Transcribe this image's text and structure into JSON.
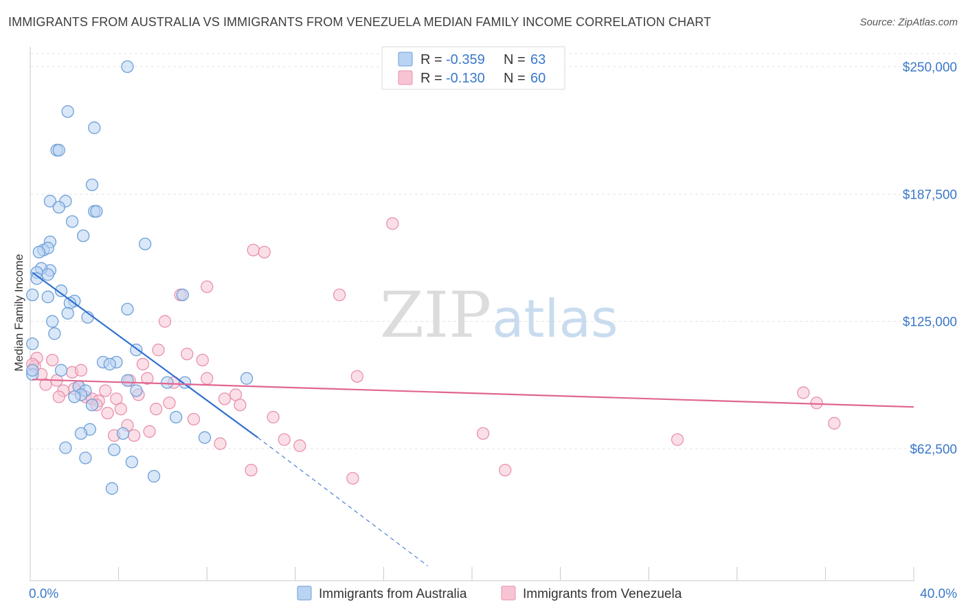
{
  "header": {
    "title": "IMMIGRANTS FROM AUSTRALIA VS IMMIGRANTS FROM VENEZUELA MEDIAN FAMILY INCOME CORRELATION CHART",
    "source": "Source: ZipAtlas.com"
  },
  "watermark": {
    "zip": "ZIP",
    "atlas": "atlas"
  },
  "colors": {
    "australia_fill": "#b9d3f2",
    "australia_stroke": "#6d9fd8",
    "australia_line": "#2f6fd0",
    "venezuela_fill": "#f7c4d4",
    "venezuela_stroke": "#e891ad",
    "venezuela_line": "#e0658f",
    "axis_label": "#3a78c9",
    "grid": "#e3e3e3"
  },
  "chart_data": {
    "type": "scatter",
    "title": "IMMIGRANTS FROM AUSTRALIA VS IMMIGRANTS FROM VENEZUELA MEDIAN FAMILY INCOME CORRELATION CHART",
    "xlabel": "",
    "ylabel": "Median Family Income",
    "xlim": [
      0,
      40
    ],
    "ylim": [
      0,
      260000
    ],
    "x_tick_labels": [
      {
        "value": 0,
        "label": "0.0%"
      },
      {
        "value": 40,
        "label": "40.0%"
      }
    ],
    "y_tick_labels": [
      {
        "value": 62500,
        "label": "$62,500"
      },
      {
        "value": 125000,
        "label": "$125,000"
      },
      {
        "value": 187500,
        "label": "$187,500"
      },
      {
        "value": 250000,
        "label": "$250,000"
      }
    ],
    "grid": true,
    "legend": {
      "position": "top-center",
      "entries": [
        {
          "series": "Immigrants from Australia",
          "r_label": "R =",
          "r_value": "-0.359",
          "n_label": "N =",
          "n_value": "63"
        },
        {
          "series": "Immigrants from Venezuela",
          "r_label": "R =",
          "r_value": "-0.130",
          "n_label": "N =",
          "n_value": "60"
        }
      ]
    },
    "series": [
      {
        "name": "Immigrants from Australia",
        "trend": {
          "x": [
            0.1,
            10.3
          ],
          "y": [
            149000,
            68000
          ],
          "dashed_to": [
            18.0,
            5000
          ]
        },
        "points": [
          [
            4.4,
            250000
          ],
          [
            1.7,
            228000
          ],
          [
            2.9,
            220000
          ],
          [
            1.2,
            209000
          ],
          [
            1.3,
            209000
          ],
          [
            2.8,
            192000
          ],
          [
            0.9,
            184000
          ],
          [
            1.6,
            184000
          ],
          [
            1.3,
            181000
          ],
          [
            2.9,
            179000
          ],
          [
            3.0,
            179000
          ],
          [
            1.9,
            174000
          ],
          [
            2.4,
            167000
          ],
          [
            0.9,
            164000
          ],
          [
            5.2,
            163000
          ],
          [
            0.6,
            160000
          ],
          [
            0.8,
            161000
          ],
          [
            0.4,
            159000
          ],
          [
            0.9,
            150000
          ],
          [
            0.5,
            151000
          ],
          [
            0.3,
            149000
          ],
          [
            0.8,
            148000
          ],
          [
            0.3,
            146000
          ],
          [
            1.4,
            140000
          ],
          [
            0.1,
            138000
          ],
          [
            0.8,
            137000
          ],
          [
            6.9,
            138000
          ],
          [
            2.0,
            135000
          ],
          [
            1.8,
            134000
          ],
          [
            4.4,
            131000
          ],
          [
            1.7,
            129000
          ],
          [
            2.6,
            127000
          ],
          [
            1.0,
            125000
          ],
          [
            1.1,
            119000
          ],
          [
            0.1,
            114000
          ],
          [
            4.8,
            111000
          ],
          [
            3.3,
            105000
          ],
          [
            3.9,
            105000
          ],
          [
            3.6,
            104000
          ],
          [
            1.4,
            101000
          ],
          [
            0.1,
            99000
          ],
          [
            9.8,
            97000
          ],
          [
            4.4,
            96000
          ],
          [
            6.2,
            95000
          ],
          [
            7.0,
            95000
          ],
          [
            2.2,
            93000
          ],
          [
            2.5,
            91000
          ],
          [
            4.8,
            91000
          ],
          [
            2.3,
            89000
          ],
          [
            2.0,
            88000
          ],
          [
            2.8,
            84000
          ],
          [
            6.6,
            78000
          ],
          [
            2.7,
            72000
          ],
          [
            2.3,
            70000
          ],
          [
            4.2,
            70000
          ],
          [
            7.9,
            68000
          ],
          [
            1.6,
            63000
          ],
          [
            3.8,
            62000
          ],
          [
            2.5,
            58000
          ],
          [
            4.6,
            56000
          ],
          [
            5.6,
            49000
          ],
          [
            3.7,
            43000
          ],
          [
            0.1,
            101000
          ]
        ]
      },
      {
        "name": "Immigrants from Venezuela",
        "trend": {
          "x": [
            0.1,
            40.0
          ],
          "y": [
            96500,
            83000
          ]
        },
        "points": [
          [
            16.4,
            173000
          ],
          [
            10.1,
            160000
          ],
          [
            10.6,
            159000
          ],
          [
            8.0,
            142000
          ],
          [
            14.0,
            138000
          ],
          [
            6.8,
            138000
          ],
          [
            6.1,
            125000
          ],
          [
            5.8,
            111000
          ],
          [
            7.1,
            109000
          ],
          [
            7.8,
            106000
          ],
          [
            0.3,
            107000
          ],
          [
            1.0,
            106000
          ],
          [
            5.1,
            104000
          ],
          [
            0.2,
            103000
          ],
          [
            1.9,
            100000
          ],
          [
            2.3,
            101000
          ],
          [
            0.5,
            99000
          ],
          [
            5.3,
            97000
          ],
          [
            8.0,
            97000
          ],
          [
            14.8,
            98000
          ],
          [
            1.2,
            96000
          ],
          [
            4.5,
            96000
          ],
          [
            0.7,
            94000
          ],
          [
            2.2,
            93000
          ],
          [
            6.5,
            95000
          ],
          [
            1.5,
            91000
          ],
          [
            3.4,
            91000
          ],
          [
            2.0,
            92000
          ],
          [
            4.9,
            89000
          ],
          [
            9.3,
            89000
          ],
          [
            1.3,
            88000
          ],
          [
            3.9,
            87000
          ],
          [
            2.5,
            88000
          ],
          [
            2.8,
            87000
          ],
          [
            8.8,
            87000
          ],
          [
            3.1,
            86000
          ],
          [
            6.3,
            85000
          ],
          [
            3.0,
            84000
          ],
          [
            9.5,
            84000
          ],
          [
            35.0,
            90000
          ],
          [
            35.6,
            85000
          ],
          [
            4.1,
            82000
          ],
          [
            3.5,
            80000
          ],
          [
            5.7,
            82000
          ],
          [
            11.0,
            78000
          ],
          [
            7.4,
            77000
          ],
          [
            36.4,
            75000
          ],
          [
            4.4,
            74000
          ],
          [
            5.4,
            71000
          ],
          [
            20.5,
            70000
          ],
          [
            3.8,
            69000
          ],
          [
            4.7,
            69000
          ],
          [
            29.3,
            67000
          ],
          [
            11.5,
            67000
          ],
          [
            8.6,
            65000
          ],
          [
            12.2,
            64000
          ],
          [
            10.0,
            52000
          ],
          [
            21.5,
            52000
          ],
          [
            14.6,
            48000
          ],
          [
            0.1,
            104000
          ]
        ]
      }
    ]
  },
  "bottom_legend": {
    "australia": "Immigrants from Australia",
    "venezuela": "Immigrants from Venezuela"
  }
}
